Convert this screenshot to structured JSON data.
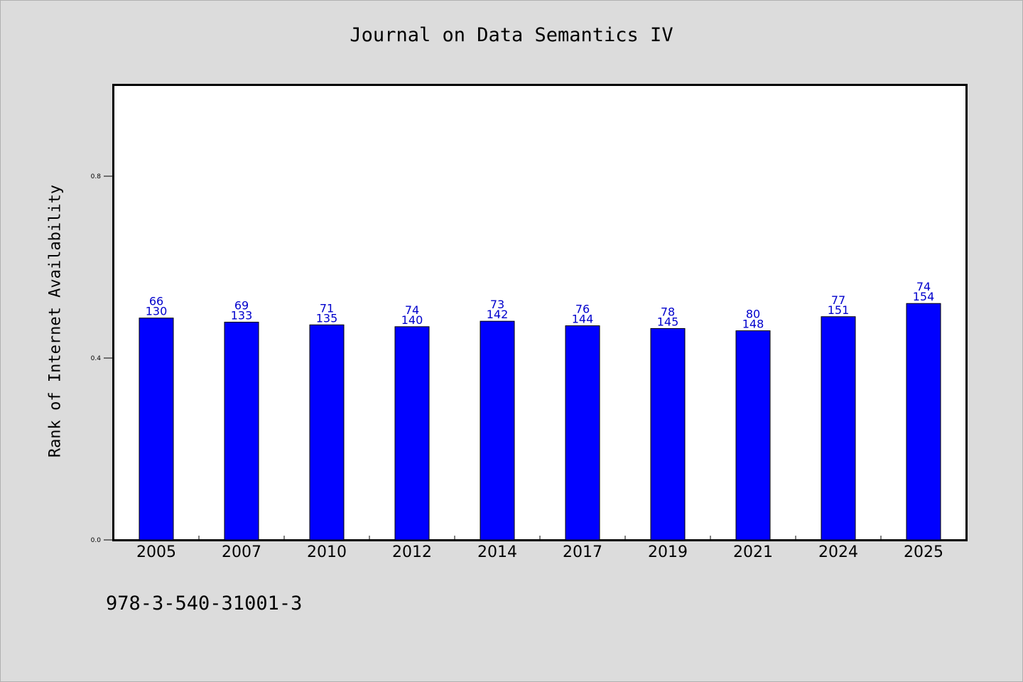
{
  "chart_data": {
    "type": "bar",
    "title": "Journal on Data Semantics IV",
    "xlabel": "",
    "ylabel": "Rank of Internet Availability",
    "footnote": "978-3-540-31001-3",
    "categories": [
      "2005",
      "2007",
      "2010",
      "2012",
      "2014",
      "2017",
      "2019",
      "2021",
      "2024",
      "2025"
    ],
    "values": [
      0.488,
      0.479,
      0.473,
      0.469,
      0.481,
      0.471,
      0.465,
      0.46,
      0.491,
      0.52
    ],
    "data_labels_top": [
      "66",
      "69",
      "71",
      "74",
      "73",
      "76",
      "78",
      "80",
      "77",
      "74"
    ],
    "data_labels_bottom": [
      "130",
      "133",
      "135",
      "140",
      "142",
      "144",
      "145",
      "148",
      "151",
      "154"
    ],
    "y_ticks": [
      "0.0",
      "0.4",
      "0.8"
    ],
    "y_tick_values": [
      0.0,
      0.4,
      0.8
    ],
    "ylim": [
      0,
      1.0
    ],
    "bar_color": "#0000ff",
    "label_color": "#0000cc",
    "grid": false,
    "legend": "none"
  }
}
